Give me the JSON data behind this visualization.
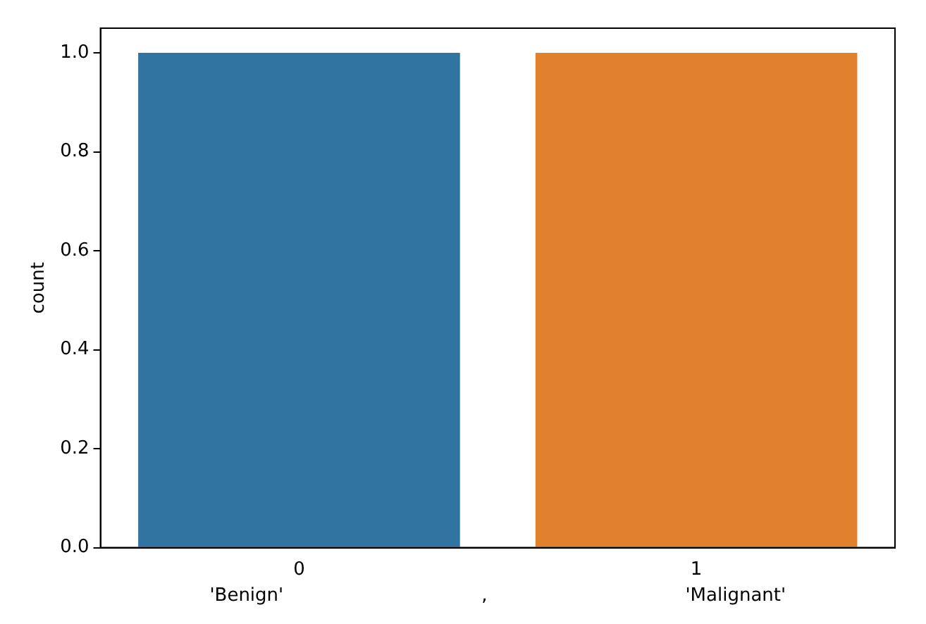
{
  "chart_data": {
    "type": "bar",
    "categories": [
      "0",
      "1"
    ],
    "colors": [
      "#3274a1",
      "#e1812c"
    ],
    "values": [
      1.0,
      1.0
    ],
    "ylabel": "count",
    "xlabel": "'Benign'                                  ,                                  'Malignant'",
    "ylim": [
      0,
      1.05
    ],
    "yticks": [
      {
        "value": 0,
        "label": "0.0"
      },
      {
        "value": 0.2,
        "label": "0.2"
      },
      {
        "value": 0.4,
        "label": "0.4"
      },
      {
        "value": 0.6,
        "label": "0.6"
      },
      {
        "value": 0.8,
        "label": "0.8"
      },
      {
        "value": 1.0,
        "label": "1.0"
      }
    ],
    "grid": false,
    "legend": false
  }
}
